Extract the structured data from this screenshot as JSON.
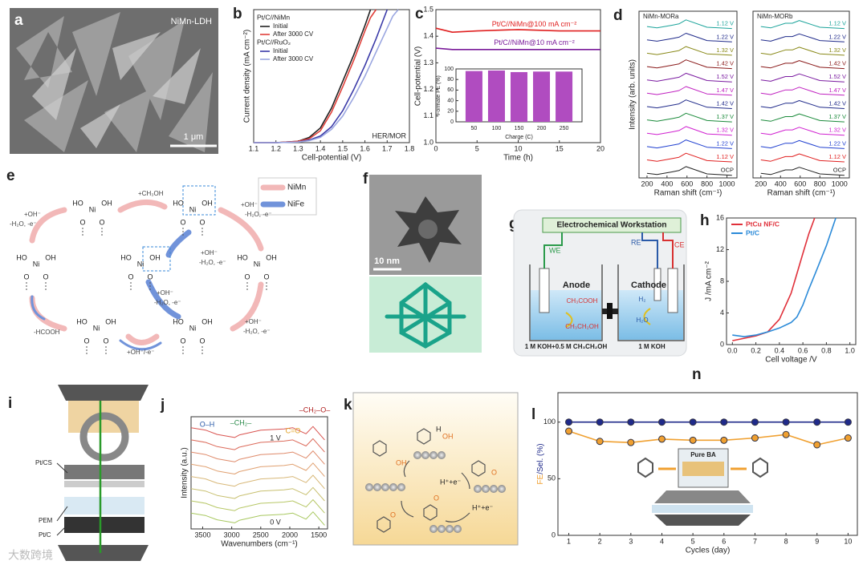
{
  "panel_labels": {
    "a": "a",
    "b": "b",
    "c": "c",
    "d": "d",
    "e": "e",
    "f": "f",
    "g": "g",
    "h": "h",
    "i": "i",
    "j": "j",
    "k": "k",
    "l": "l",
    "n": "n"
  },
  "panel_a": {
    "sample": "NiMn-LDH",
    "scale": "1 μm"
  },
  "panel_e": {
    "legend": [
      "NiMn",
      "NiFe"
    ],
    "steps": {
      "methanol": "+CH₃OH",
      "oh": "+OH⁻",
      "loss": "-H₂O, -e⁻",
      "formic": "-HCOOH",
      "last": "+OH⁻/-e⁻"
    },
    "atoms": {
      "ni": "Ni",
      "ho": "HO",
      "oh": "OH",
      "o": "O"
    }
  },
  "panel_f": {
    "scale": "10 nm"
  },
  "panel_g": {
    "title": "Electrochemical Workstation",
    "we": "WE",
    "re": "RE",
    "ce": "CE",
    "anode": "Anode",
    "cathode": "Cathode",
    "product": "CH₃COOH",
    "reactant": "CH₃CH₂OH",
    "h2": "H₂",
    "h2o": "H₂O",
    "anolyte": "1 M KOH+0.5 M CH₃CH₂OH",
    "catholyte": "1 M KOH"
  },
  "panel_i": {
    "layers": [
      "Pt/CS",
      "PEM",
      "Pt/C"
    ]
  },
  "panel_k": {
    "proton": "H⁺+e⁻",
    "atoms": {
      "h": "H",
      "oh": "OH",
      "o": "O"
    }
  },
  "watermark": "大数跨境",
  "chart_data": [
    {
      "type": "line",
      "xlabel": "Cell-potential (V)",
      "ylabel": "Current density (mA cm⁻²)",
      "x": [
        1.1,
        1.2,
        1.3,
        1.35,
        1.4,
        1.45,
        1.5,
        1.55,
        1.6,
        1.625,
        1.65,
        1.7,
        1.725,
        1.75
      ],
      "xlim": [
        1.1,
        1.8
      ],
      "xticks": [
        1.1,
        1.2,
        1.3,
        1.4,
        1.5,
        1.6,
        1.7,
        1.8
      ],
      "ylim": [
        0,
        100
      ],
      "legend": "upper left",
      "legend_groups": [
        "Pt/C//NiMn",
        "Pt/C//RuO₂"
      ],
      "annotations": [
        "HER/MOR"
      ],
      "series": [
        {
          "name": "Initial",
          "color": "#222222",
          "values": [
            0,
            0,
            1,
            4,
            11,
            26,
            46,
            66,
            88,
            100,
            null,
            null,
            null,
            null
          ]
        },
        {
          "name": "After 3000 CV",
          "color": "#e0403a",
          "values": [
            0,
            0,
            1,
            3,
            9,
            23,
            42,
            62,
            84,
            94,
            100,
            null,
            null,
            null
          ]
        },
        {
          "name": "Initial",
          "color": "#3a3aa8",
          "values": [
            0,
            0,
            0.5,
            2,
            5,
            12,
            24,
            40,
            58,
            68,
            78,
            100,
            null,
            null
          ]
        },
        {
          "name": "After 3000 CV",
          "color": "#9aa6e0",
          "values": [
            0,
            0,
            0.5,
            1.5,
            4,
            10,
            20,
            34,
            50,
            59,
            68,
            86,
            95,
            100
          ]
        }
      ]
    },
    {
      "type": "line",
      "xlabel": "Time (h)",
      "ylabel": "Cell-potential (V)",
      "x": [
        0,
        2,
        5,
        10,
        15,
        20
      ],
      "xlim": [
        0,
        20
      ],
      "xticks": [
        0,
        5,
        10,
        15,
        20
      ],
      "ylim": [
        1,
        1.5
      ],
      "yticks": [
        {
          "value": 1,
          "label": "1.0"
        },
        1.1,
        1.2,
        1.3,
        1.4,
        {
          "value": 1.5,
          "label": "1.5"
        }
      ],
      "series": [
        {
          "name": "Pt/C//NiMn@100 mA cm⁻²",
          "color": "#e02020",
          "values": [
            1.43,
            1.415,
            1.42,
            1.425,
            1.42,
            1.42
          ]
        },
        {
          "name": "Pt/C//NiMn@10 mA cm⁻²",
          "color": "#7a1a9a",
          "values": [
            1.355,
            1.35,
            1.35,
            1.35,
            1.35,
            1.35
          ]
        }
      ]
    },
    {
      "type": "bar",
      "xlabel": "Charge (C)",
      "ylabel": "Formate FE (%)",
      "color": "#b04cc0",
      "x": [
        50,
        100,
        150,
        200,
        250
      ],
      "values": [
        96,
        97,
        94,
        95,
        95
      ],
      "xlim": [
        10,
        290
      ],
      "xticks": [
        50,
        100,
        150,
        200,
        250
      ],
      "ylim": [
        0,
        100
      ],
      "yticks": [
        0,
        20,
        40,
        60,
        80,
        100
      ]
    },
    {
      "type": "line",
      "title": "NiMn-MORa",
      "xlabel": "Raman shift (cm⁻¹)",
      "ylabel": "Intensity (arb. units)",
      "x": [
        200,
        300,
        450,
        520,
        590,
        800,
        1050
      ],
      "xlim": [
        120,
        1100
      ],
      "xticks": [
        200,
        400,
        600,
        800,
        1000
      ],
      "ylim": [
        0,
        12.5
      ],
      "series": [
        {
          "name": "1.12 V",
          "color": "#1aa39a",
          "values": [
            11.35,
            11.25,
            11.45,
            11.55,
            11.85,
            11.3,
            11.2
          ]
        },
        {
          "name": "1.22 V",
          "color": "#1f2a8a",
          "values": [
            10.35,
            10.25,
            10.45,
            10.55,
            10.85,
            10.3,
            10.2
          ]
        },
        {
          "name": "1.32 V",
          "color": "#8a8a1a",
          "values": [
            9.35,
            9.25,
            9.45,
            9.55,
            9.85,
            9.3,
            9.2
          ]
        },
        {
          "name": "1.42 V",
          "color": "#8a1a1a",
          "values": [
            8.35,
            8.25,
            8.45,
            8.55,
            8.85,
            8.3,
            8.2
          ]
        },
        {
          "name": "1.52 V",
          "color": "#7a1aa0",
          "values": [
            7.35,
            7.25,
            7.45,
            7.55,
            7.85,
            7.3,
            7.2
          ]
        },
        {
          "name": "1.47 V",
          "color": "#c020c0",
          "values": [
            6.35,
            6.25,
            6.45,
            6.55,
            6.85,
            6.3,
            6.2
          ]
        },
        {
          "name": "1.42 V",
          "color": "#1f2a8a",
          "values": [
            5.35,
            5.25,
            5.45,
            5.55,
            5.85,
            5.3,
            5.2
          ]
        },
        {
          "name": "1.37 V",
          "color": "#1a8a3a",
          "values": [
            4.35,
            4.25,
            4.45,
            4.55,
            4.85,
            4.3,
            4.2
          ]
        },
        {
          "name": "1.32 V",
          "color": "#d020d0",
          "values": [
            3.35,
            3.25,
            3.45,
            3.55,
            3.85,
            3.3,
            3.2
          ]
        },
        {
          "name": "1.22 V",
          "color": "#2040d0",
          "values": [
            2.35,
            2.25,
            2.45,
            2.55,
            2.85,
            2.3,
            2.2
          ]
        },
        {
          "name": "1.12 V",
          "color": "#e02020",
          "values": [
            1.35,
            1.25,
            1.45,
            1.55,
            1.85,
            1.3,
            1.2
          ]
        },
        {
          "name": "OCP",
          "color": "#222222",
          "values": [
            0.35,
            0.25,
            0.45,
            0.55,
            0.85,
            0.3,
            0.2
          ]
        }
      ]
    },
    {
      "type": "line",
      "title": "NiMn-MORb",
      "xlabel": "Raman shift (cm⁻¹)",
      "x": [
        200,
        300,
        450,
        520,
        590,
        800,
        1050
      ],
      "xlim": [
        120,
        1100
      ],
      "xticks": [
        200,
        400,
        600,
        800,
        1000
      ],
      "ylim": [
        0,
        12.5
      ],
      "series": [
        {
          "name": "1.12 V",
          "color": "#1aa39a",
          "values": [
            11.35,
            11.25,
            11.6,
            11.6,
            11.8,
            11.3,
            11.2
          ]
        },
        {
          "name": "1.22 V",
          "color": "#1f2a8a",
          "values": [
            10.35,
            10.25,
            10.6,
            10.6,
            10.8,
            10.3,
            10.2
          ]
        },
        {
          "name": "1.32 V",
          "color": "#8a8a1a",
          "values": [
            9.35,
            9.25,
            9.6,
            9.6,
            9.8,
            9.3,
            9.2
          ]
        },
        {
          "name": "1.42 V",
          "color": "#8a1a1a",
          "values": [
            8.35,
            8.25,
            8.6,
            8.6,
            8.8,
            8.3,
            8.2
          ]
        },
        {
          "name": "1.52 V",
          "color": "#7a1aa0",
          "values": [
            7.35,
            7.25,
            7.6,
            7.6,
            7.8,
            7.3,
            7.2
          ]
        },
        {
          "name": "1.47 V",
          "color": "#c020c0",
          "values": [
            6.35,
            6.25,
            6.6,
            6.6,
            6.8,
            6.3,
            6.2
          ]
        },
        {
          "name": "1.42 V",
          "color": "#1f2a8a",
          "values": [
            5.35,
            5.25,
            5.6,
            5.6,
            5.8,
            5.3,
            5.2
          ]
        },
        {
          "name": "1.37 V",
          "color": "#1a8a3a",
          "values": [
            4.35,
            4.25,
            4.6,
            4.6,
            4.8,
            4.3,
            4.2
          ]
        },
        {
          "name": "1.32 V",
          "color": "#d020d0",
          "values": [
            3.35,
            3.25,
            3.6,
            3.6,
            3.8,
            3.3,
            3.2
          ]
        },
        {
          "name": "1.22 V",
          "color": "#2040d0",
          "values": [
            2.35,
            2.25,
            2.6,
            2.6,
            2.8,
            2.3,
            2.2
          ]
        },
        {
          "name": "1.12 V",
          "color": "#e02020",
          "values": [
            1.35,
            1.25,
            1.6,
            1.6,
            1.8,
            1.3,
            1.2
          ]
        },
        {
          "name": "OCP",
          "color": "#222222",
          "values": [
            0.35,
            0.25,
            0.6,
            0.6,
            0.8,
            0.3,
            0.2
          ]
        }
      ]
    },
    {
      "type": "line",
      "xlabel": "Cell voltage /V",
      "ylabel": "J /mA cm⁻²",
      "legend": "upper left",
      "x": [
        0,
        0.1,
        0.2,
        0.3,
        0.4,
        0.5,
        0.55,
        0.6,
        0.65,
        0.7,
        0.8,
        0.88
      ],
      "xlim": [
        -0.05,
        1.05
      ],
      "xticks": [
        {
          "value": 0,
          "label": "0.0"
        },
        0.2,
        0.4,
        0.6,
        0.8,
        {
          "value": 1,
          "label": "1.0"
        }
      ],
      "ylim": [
        0,
        16
      ],
      "yticks": [
        0,
        4,
        8,
        12,
        16
      ],
      "series": [
        {
          "name": "PtCu NF/C",
          "color": "#e0303a",
          "values": [
            0.5,
            0.8,
            1.1,
            1.6,
            3.2,
            6.5,
            9,
            11.5,
            14,
            16,
            null,
            null
          ]
        },
        {
          "name": "Pt/C",
          "color": "#2a8ad8",
          "values": [
            1.2,
            1,
            1.2,
            1.6,
            2.1,
            2.8,
            3.5,
            5,
            7,
            8.8,
            12.5,
            16
          ]
        }
      ]
    },
    {
      "type": "line",
      "xlabel": "Wavenumbers (cm⁻¹)",
      "ylabel": "Intensity (a.u.)",
      "annotations": [
        "O–H",
        "–CH₂–",
        "–CH₂–O–",
        "C=O",
        "1 V",
        "0 V"
      ],
      "x": [
        3700,
        3450,
        3250,
        2950,
        2870,
        2500,
        2100,
        1950,
        1720,
        1600,
        1400
      ],
      "xlim": [
        3700,
        1350
      ],
      "xticks": [
        3500,
        3000,
        2500,
        2000,
        1500
      ],
      "ylim": [
        -0.6,
        8.6
      ],
      "series": [
        {
          "color": "#d9534f",
          "values": [
            7.7,
            7.5,
            7.15,
            6.9,
            7.1,
            7.5,
            7.6,
            7.7,
            7.2,
            7.8,
            6.7
          ]
        },
        {
          "color": "#dc6a5a",
          "values": [
            6.7,
            6.5,
            6.15,
            5.9,
            6.1,
            6.5,
            6.6,
            6.7,
            6.2,
            6.8,
            5.7
          ]
        },
        {
          "color": "#df8a6a",
          "values": [
            5.7,
            5.5,
            5.15,
            4.9,
            5.1,
            5.5,
            5.6,
            5.7,
            5.2,
            5.8,
            4.7
          ]
        },
        {
          "color": "#e0a070",
          "values": [
            4.7,
            4.5,
            4.15,
            3.9,
            4.1,
            4.5,
            4.6,
            4.7,
            4.2,
            4.8,
            3.7
          ]
        },
        {
          "color": "#d8b878",
          "values": [
            3.7,
            3.5,
            3.15,
            2.9,
            3.1,
            3.5,
            3.6,
            3.7,
            3.2,
            3.8,
            2.7
          ]
        },
        {
          "color": "#c8c070",
          "values": [
            2.7,
            2.5,
            2.15,
            1.9,
            2.1,
            2.5,
            2.6,
            2.7,
            2.2,
            2.8,
            1.7
          ]
        },
        {
          "color": "#b8c868",
          "values": [
            1.7,
            1.5,
            1.15,
            0.9,
            1.1,
            1.5,
            1.6,
            1.7,
            1.2,
            1.8,
            0.7
          ]
        },
        {
          "color": "#a8c860",
          "values": [
            0.7,
            0.5,
            0.15,
            -0.1,
            0.1,
            0.5,
            0.6,
            0.7,
            0.2,
            0.8,
            -0.3
          ]
        }
      ]
    },
    {
      "type": "line",
      "xlabel": "Cycles (day)",
      "ylabel": [
        "FE",
        "/Sel. (%)"
      ],
      "ylabel_colors": [
        "#f0a030",
        "#1f2a8a"
      ],
      "markers": true,
      "inset_label": "Pure BA",
      "x": [
        1,
        2,
        3,
        4,
        5,
        6,
        7,
        8,
        9,
        10
      ],
      "xlim": [
        0.65,
        10.3
      ],
      "xticks": [
        1,
        2,
        3,
        4,
        5,
        6,
        7,
        8,
        9,
        10
      ],
      "ylim": [
        0,
        126
      ],
      "yticks": [
        0,
        50,
        100
      ],
      "series": [
        {
          "color": "#1f2a8a",
          "values": [
            100,
            100,
            100,
            100,
            100,
            100,
            100,
            100,
            100,
            100
          ]
        },
        {
          "color": "#f0a030",
          "values": [
            92,
            83,
            82,
            85,
            84,
            84,
            86,
            89,
            80,
            86
          ]
        }
      ]
    }
  ]
}
